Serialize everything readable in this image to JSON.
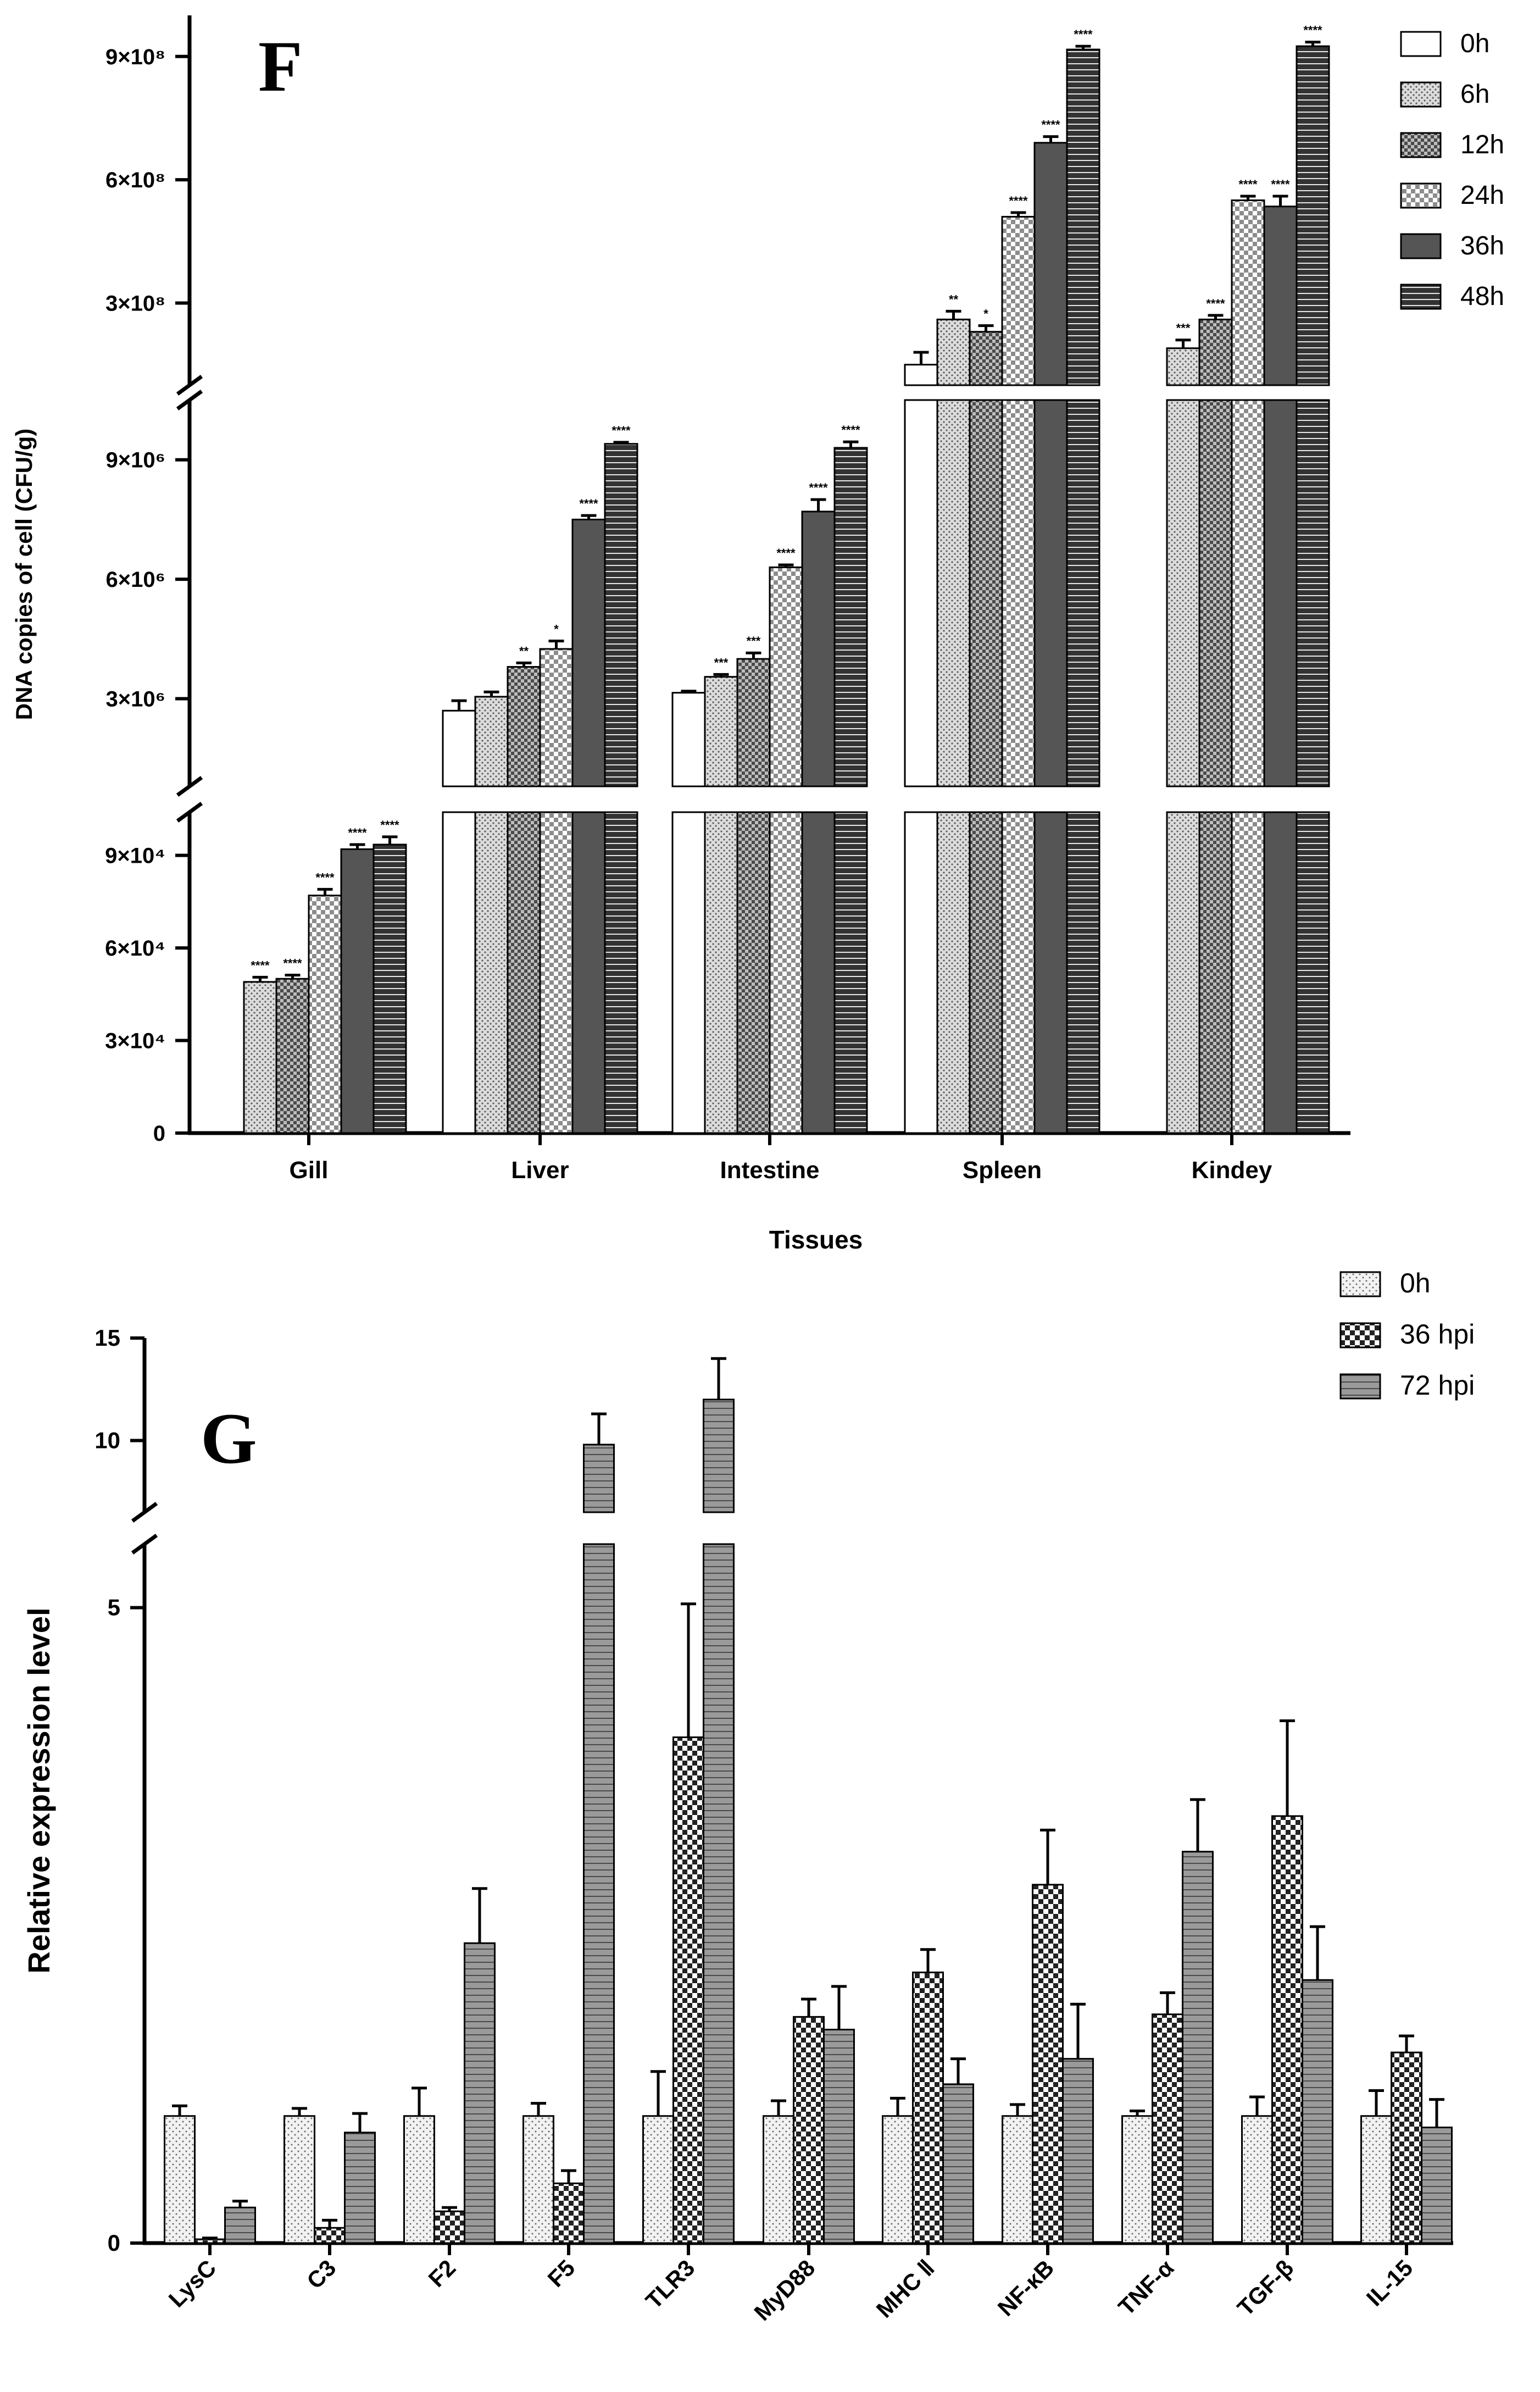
{
  "chart_data": [
    {
      "panel": "F",
      "type": "bar",
      "xlabel": "Tissues",
      "ylabel": "DNA copies of cell (CFU/g)",
      "categories": [
        "Gill",
        "Liver",
        "Intestine",
        "Spleen",
        "Kindey"
      ],
      "axis_breaks": true,
      "segments": [
        {
          "range": [
            0,
            104000
          ],
          "ticks": [
            "0",
            "3×10⁴",
            "6×10⁴",
            "9×10⁴"
          ],
          "tick_values": [
            0,
            30000,
            60000,
            90000
          ]
        },
        {
          "range": [
            800000,
            10500000
          ],
          "ticks": [
            "3×10⁶",
            "6×10⁶",
            "9×10⁶"
          ],
          "tick_values": [
            3000000,
            6000000,
            9000000
          ]
        },
        {
          "range": [
            100000000,
            1000000000
          ],
          "ticks": [
            "3×10⁸",
            "6×10⁸",
            "9×10⁸"
          ],
          "tick_values": [
            300000000,
            600000000,
            900000000
          ]
        }
      ],
      "legend_position": "top-right",
      "series": [
        {
          "name": "0h",
          "values": [
            null,
            2700000,
            3150000,
            150000000,
            null
          ],
          "errors": [
            null,
            250000,
            40000,
            30000000,
            null
          ],
          "sig": [
            "",
            "",
            "",
            "",
            ""
          ]
        },
        {
          "name": "6h",
          "values": [
            49000,
            3050000,
            3550000,
            260000000,
            190000000
          ],
          "errors": [
            1500,
            120000,
            60000,
            20000000,
            20000000
          ],
          "sig": [
            "****",
            "",
            "***",
            "**",
            "***"
          ]
        },
        {
          "name": "12h",
          "values": [
            50000,
            3800000,
            4000000,
            230000000,
            260000000
          ],
          "errors": [
            1200,
            100000,
            150000,
            15000000,
            10000000
          ],
          "sig": [
            "****",
            "**",
            "***",
            "*",
            "****"
          ]
        },
        {
          "name": "24h",
          "values": [
            77000,
            4250000,
            6300000,
            510000000,
            550000000
          ],
          "errors": [
            2000,
            200000,
            60000,
            10000000,
            10000000
          ],
          "sig": [
            "****",
            "*",
            "****",
            "****",
            "****"
          ]
        },
        {
          "name": "36h",
          "values": [
            92000,
            7500000,
            7700000,
            690000000,
            535000000
          ],
          "errors": [
            1500,
            100000,
            300000,
            15000000,
            25000000
          ],
          "sig": [
            "****",
            "****",
            "****",
            "****",
            "****"
          ]
        },
        {
          "name": "48h",
          "values": [
            93500,
            9400000,
            9300000,
            917000000,
            925000000
          ],
          "errors": [
            2500,
            40000,
            150000,
            8000000,
            10000000
          ],
          "sig": [
            "****",
            "****",
            "****",
            "****",
            "****"
          ]
        }
      ]
    },
    {
      "panel": "G",
      "type": "bar",
      "xlabel": "",
      "ylabel": "Relative expression level",
      "categories": [
        "LysC",
        "C3",
        "F2",
        "F5",
        "TLR3",
        "MyD88",
        "MHC Ⅱ",
        "NF-κB",
        "TNF-α",
        "TGF-β",
        "IL-15"
      ],
      "axis_breaks": true,
      "segments": [
        {
          "range": [
            0,
            5.5
          ],
          "ticks": [
            "0",
            "5"
          ],
          "tick_values": [
            0,
            5
          ]
        },
        {
          "range": [
            6.5,
            15
          ],
          "ticks": [
            "10",
            "15"
          ],
          "tick_values": [
            10,
            15
          ]
        }
      ],
      "legend_position": "top-right",
      "series": [
        {
          "name": "0h",
          "values": [
            1,
            1,
            1,
            1,
            1,
            1,
            1,
            1,
            1,
            1,
            1
          ],
          "errors": [
            0.08,
            0.06,
            0.22,
            0.1,
            0.35,
            0.12,
            0.14,
            0.09,
            0.04,
            0.15,
            0.2
          ]
        },
        {
          "name": "36 hpi",
          "values": [
            0.03,
            0.12,
            0.25,
            0.47,
            3.98,
            1.78,
            2.13,
            2.82,
            1.8,
            3.36,
            1.5
          ],
          "errors": [
            0.01,
            0.06,
            0.03,
            0.1,
            1.05,
            0.14,
            0.18,
            0.43,
            0.17,
            0.75,
            0.13
          ]
        },
        {
          "name": "72 hpi",
          "values": [
            0.28,
            0.87,
            2.36,
            9.8,
            12.0,
            1.68,
            1.25,
            1.45,
            3.08,
            2.07,
            0.91
          ],
          "errors": [
            0.05,
            0.15,
            0.43,
            1.5,
            2.0,
            0.34,
            0.2,
            0.43,
            0.41,
            0.42,
            0.22
          ]
        }
      ]
    }
  ]
}
